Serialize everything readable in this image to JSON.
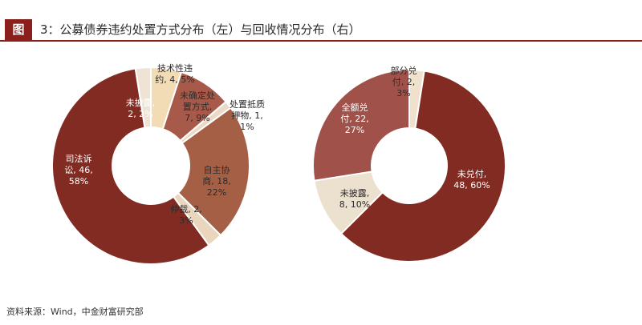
{
  "figure": {
    "badge": "图",
    "title": "3：公募债券违约处置方式分布（左）与回收情况分布（右）",
    "source": "资料来源：Wind，中金财富研究部"
  },
  "colors": {
    "brand": "#8a1f1b",
    "outline": "#ffffff"
  },
  "chart_data": [
    {
      "type": "pie",
      "title": "",
      "donut": true,
      "slices": [
        {
          "name": "技术性违约",
          "value": 4,
          "percent": "5%",
          "color": "#f2dcb5",
          "label_lines": [
            "技术性违",
            "约, 4, 5%"
          ]
        },
        {
          "name": "未确定处置方式",
          "value": 7,
          "percent": "9%",
          "color": "#a85a4a",
          "label_lines": [
            "未确定处",
            "置方式,",
            "7, 9%"
          ]
        },
        {
          "name": "处置抵质押物",
          "value": 1,
          "percent": "1%",
          "color": "#ecd9c5",
          "label_lines": [
            "处置抵质",
            "押物, 1,",
            "1%"
          ]
        },
        {
          "name": "自主协商",
          "value": 18,
          "percent": "22%",
          "color": "#a55f45",
          "label_lines": [
            "自主协",
            "商, 18,",
            "22%"
          ]
        },
        {
          "name": "仲裁",
          "value": 2,
          "percent": "3%",
          "color": "#ead6bd",
          "label_lines": [
            "仲裁, 2,",
            "3%"
          ]
        },
        {
          "name": "司法诉讼",
          "value": 46,
          "percent": "58%",
          "color": "#822b22",
          "label_lines": [
            "司法诉",
            "讼, 46,",
            "58%"
          ]
        },
        {
          "name": "未披露",
          "value": 2,
          "percent": "2%",
          "color": "#efe3d6",
          "label_lines": [
            "未披露,",
            "2, 2%"
          ]
        }
      ]
    },
    {
      "type": "pie",
      "title": "",
      "donut": true,
      "slices": [
        {
          "name": "部分兑付",
          "value": 2,
          "percent": "3%",
          "color": "#efe1cc",
          "label_lines": [
            "部分兑",
            "付, 2,",
            "3%"
          ]
        },
        {
          "name": "未兑付",
          "value": 48,
          "percent": "60%",
          "color": "#822b22",
          "label_lines": [
            "未兑付,",
            "48, 60%"
          ]
        },
        {
          "name": "未披露",
          "value": 8,
          "percent": "10%",
          "color": "#ece0cf",
          "label_lines": [
            "未披露,",
            "8, 10%"
          ]
        },
        {
          "name": "全额兑付",
          "value": 22,
          "percent": "27%",
          "color": "#a0524a",
          "label_lines": [
            "全额兑",
            "付, 22,",
            "27%"
          ]
        }
      ]
    }
  ]
}
